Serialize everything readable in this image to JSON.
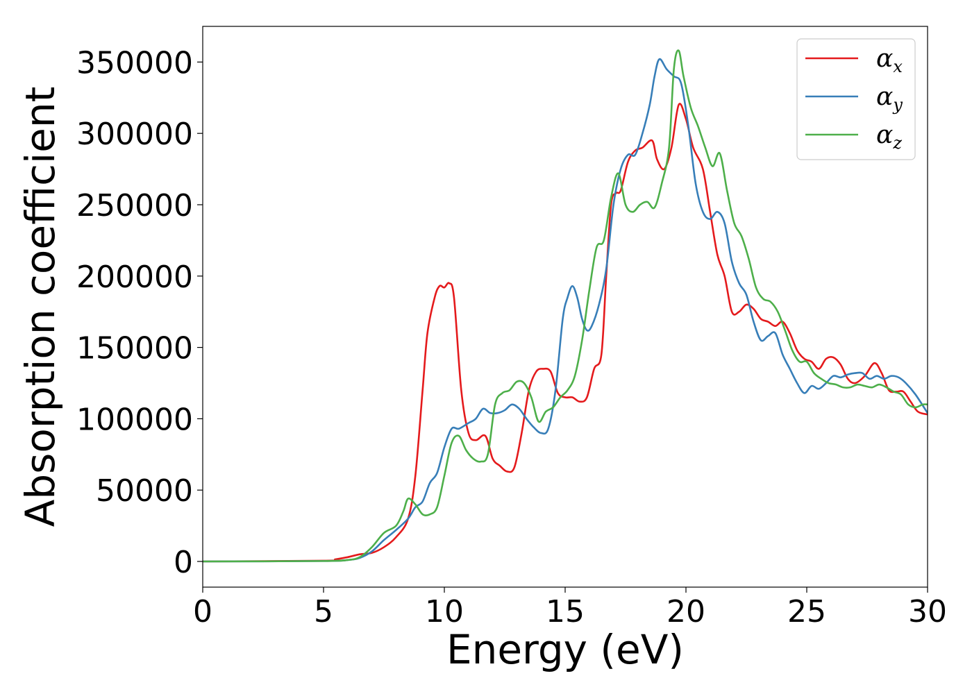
{
  "chart_data": {
    "type": "line",
    "xlabel": "Energy (eV)",
    "ylabel": "Absorption coefficient",
    "xlim": [
      0,
      30
    ],
    "ylim": [
      -18000,
      375000
    ],
    "xticks": [
      0,
      5,
      10,
      15,
      20,
      25,
      30
    ],
    "yticks": [
      0,
      50000,
      100000,
      150000,
      200000,
      250000,
      300000,
      350000
    ],
    "grid": false,
    "legend_position": "top-right",
    "series": [
      {
        "name": "α",
        "subscript": "x",
        "color": "#e41a1c",
        "x": [
          0,
          5,
          5.5,
          6,
          6.5,
          7,
          7.5,
          8,
          8.5,
          8.8,
          9.1,
          9.3,
          9.6,
          9.8,
          10,
          10.2,
          10.4,
          10.7,
          11,
          11.3,
          11.7,
          12,
          12.3,
          12.6,
          12.9,
          13.2,
          13.5,
          13.8,
          14.1,
          14.4,
          14.7,
          15,
          15.3,
          15.6,
          15.9,
          16.2,
          16.5,
          16.7,
          16.9,
          17.1,
          17.3,
          17.6,
          17.9,
          18.2,
          18.6,
          18.8,
          19.1,
          19.4,
          19.7,
          20,
          20.3,
          20.7,
          21,
          21.3,
          21.6,
          21.9,
          22.2,
          22.5,
          22.8,
          23.1,
          23.4,
          23.7,
          24,
          24.3,
          24.6,
          24.9,
          25.2,
          25.5,
          25.8,
          26.1,
          26.4,
          26.7,
          27,
          27.4,
          27.8,
          28.1,
          28.4,
          28.7,
          29,
          29.3,
          29.6,
          30
        ],
        "y": [
          0,
          500,
          1500,
          3000,
          5000,
          6000,
          10000,
          17000,
          30000,
          60000,
          120000,
          160000,
          185000,
          193000,
          192000,
          195000,
          185000,
          120000,
          90000,
          85000,
          88000,
          72000,
          67000,
          63000,
          66000,
          90000,
          120000,
          133000,
          135000,
          133000,
          118000,
          115000,
          115000,
          112000,
          115000,
          135000,
          145000,
          200000,
          250000,
          258000,
          260000,
          280000,
          288000,
          290000,
          295000,
          282000,
          275000,
          290000,
          320000,
          310000,
          290000,
          275000,
          245000,
          215000,
          200000,
          175000,
          175000,
          180000,
          177000,
          170000,
          168000,
          165000,
          168000,
          160000,
          148000,
          142000,
          140000,
          135000,
          142000,
          143000,
          138000,
          128000,
          125000,
          130000,
          139000,
          132000,
          120000,
          119000,
          119000,
          112000,
          105000,
          103000
        ]
      },
      {
        "name": "α",
        "subscript": "y",
        "color": "#377eb8",
        "x": [
          0,
          5,
          6,
          6.5,
          7,
          7.5,
          8,
          8.5,
          8.8,
          9.1,
          9.4,
          9.7,
          10,
          10.3,
          10.6,
          11,
          11.3,
          11.6,
          11.9,
          12.2,
          12.5,
          12.8,
          13.1,
          13.4,
          13.7,
          14,
          14.3,
          14.6,
          14.9,
          15.1,
          15.3,
          15.5,
          15.7,
          15.9,
          16.1,
          16.4,
          16.7,
          17,
          17.3,
          17.6,
          17.9,
          18.2,
          18.5,
          18.7,
          18.9,
          19.2,
          19.5,
          19.8,
          20.1,
          20.4,
          20.7,
          21,
          21.3,
          21.6,
          21.9,
          22.2,
          22.5,
          22.8,
          23.1,
          23.4,
          23.7,
          24,
          24.3,
          24.6,
          24.9,
          25.2,
          25.5,
          25.8,
          26.1,
          26.4,
          26.7,
          27,
          27.3,
          27.6,
          27.9,
          28.2,
          28.5,
          28.8,
          29.1,
          29.5,
          30
        ],
        "y": [
          0,
          300,
          1000,
          2500,
          7000,
          15000,
          22000,
          30000,
          38000,
          42000,
          55000,
          62000,
          80000,
          93000,
          93000,
          97000,
          100000,
          107000,
          104000,
          104000,
          106000,
          110000,
          107000,
          100000,
          94000,
          90000,
          93000,
          120000,
          170000,
          185000,
          193000,
          185000,
          170000,
          162000,
          165000,
          180000,
          205000,
          250000,
          275000,
          285000,
          285000,
          300000,
          320000,
          340000,
          352000,
          345000,
          340000,
          335000,
          305000,
          265000,
          245000,
          240000,
          245000,
          237000,
          210000,
          195000,
          187000,
          168000,
          155000,
          158000,
          160000,
          145000,
          135000,
          125000,
          118000,
          123000,
          121000,
          125000,
          130000,
          129000,
          131000,
          132000,
          132000,
          128000,
          130000,
          128000,
          130000,
          129000,
          125000,
          117000,
          104000
        ]
      },
      {
        "name": "α",
        "subscript": "z",
        "color": "#4daf4a",
        "x": [
          0,
          5,
          6,
          6.5,
          7,
          7.5,
          8,
          8.3,
          8.5,
          8.8,
          9.1,
          9.4,
          9.7,
          10,
          10.3,
          10.6,
          10.9,
          11.2,
          11.5,
          11.8,
          12.1,
          12.4,
          12.7,
          13,
          13.3,
          13.6,
          13.9,
          14.2,
          14.5,
          14.8,
          15.1,
          15.4,
          15.7,
          16,
          16.3,
          16.6,
          16.9,
          17.2,
          17.5,
          17.8,
          18.1,
          18.4,
          18.7,
          19,
          19.3,
          19.5,
          19.7,
          19.9,
          20.2,
          20.5,
          20.8,
          21.1,
          21.4,
          21.7,
          22,
          22.3,
          22.6,
          22.9,
          23.2,
          23.5,
          23.8,
          24.1,
          24.4,
          24.7,
          25,
          25.3,
          25.6,
          25.9,
          26.2,
          26.5,
          26.8,
          27.1,
          27.4,
          27.7,
          28,
          28.3,
          28.6,
          28.9,
          29.2,
          29.5,
          29.8,
          30
        ],
        "y": [
          0,
          300,
          1000,
          3000,
          10000,
          20000,
          25000,
          35000,
          44000,
          40000,
          33000,
          33000,
          38000,
          60000,
          83000,
          88000,
          78000,
          72000,
          70000,
          75000,
          110000,
          118000,
          120000,
          126000,
          125000,
          115000,
          98000,
          105000,
          108000,
          115000,
          120000,
          130000,
          155000,
          190000,
          220000,
          225000,
          255000,
          272000,
          250000,
          245000,
          250000,
          252000,
          248000,
          265000,
          290000,
          345000,
          358000,
          340000,
          318000,
          305000,
          290000,
          277000,
          286000,
          260000,
          237000,
          228000,
          212000,
          192000,
          184000,
          182000,
          175000,
          162000,
          148000,
          140000,
          140000,
          132000,
          128000,
          125000,
          124000,
          122000,
          122000,
          124000,
          123000,
          122000,
          124000,
          122000,
          119000,
          117000,
          110000,
          108000,
          110000,
          110000
        ]
      }
    ]
  }
}
